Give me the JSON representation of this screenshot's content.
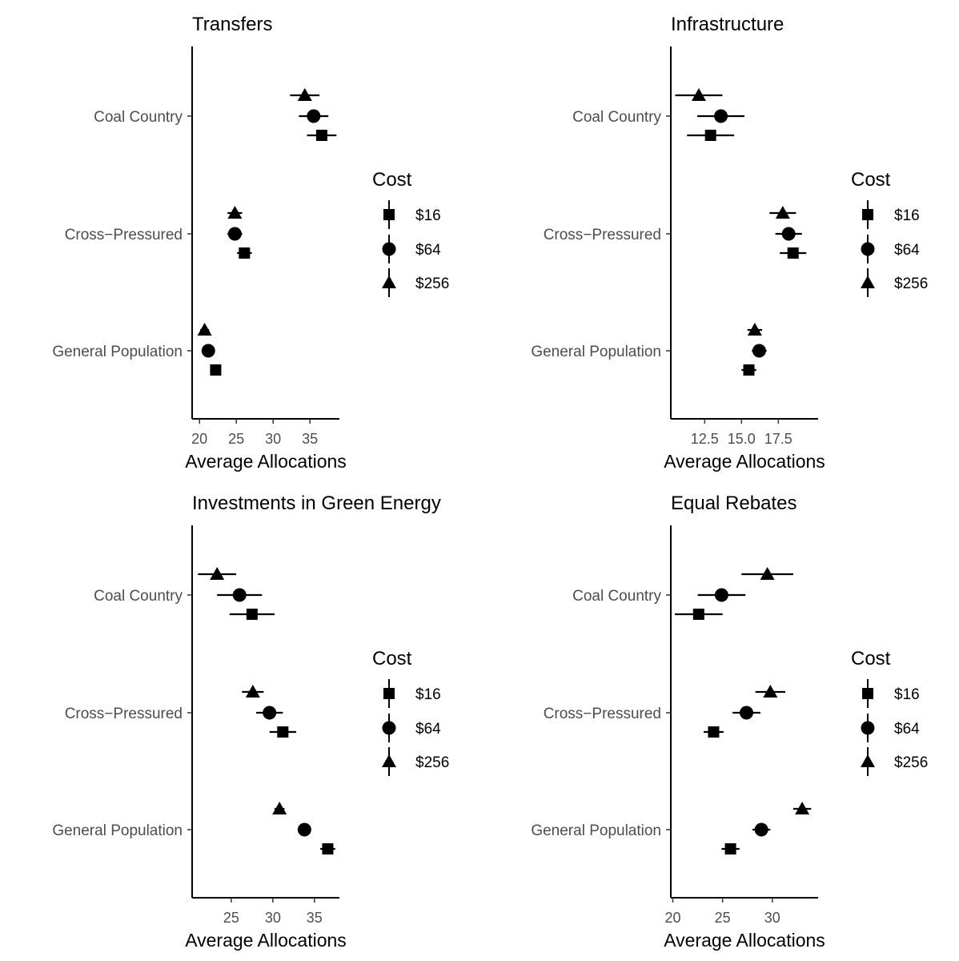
{
  "chart_data": [
    {
      "type": "scatter",
      "title": "Transfers",
      "xlabel": "Average Allocations",
      "ylabel": "",
      "xlim": [
        19,
        39
      ],
      "xticks": [
        20,
        25,
        30,
        35
      ],
      "xtick_labels": [
        "20",
        "25",
        "30",
        "35"
      ],
      "categories": [
        "Coal Country",
        "Cross−Pressured",
        "General Population"
      ],
      "legend": {
        "title": "Cost",
        "position": "right"
      },
      "grid": false,
      "series": [
        {
          "name": "$16",
          "marker": "square",
          "values": [
            36.6,
            26.1,
            22.2
          ],
          "ci_low": [
            34.6,
            25.1,
            21.6
          ],
          "ci_high": [
            38.6,
            27.1,
            22.8
          ]
        },
        {
          "name": "$64",
          "marker": "circle",
          "values": [
            35.5,
            24.8,
            21.2
          ],
          "ci_low": [
            33.5,
            23.8,
            20.6
          ],
          "ci_high": [
            37.5,
            25.8,
            21.8
          ]
        },
        {
          "name": "$256",
          "marker": "triangle",
          "values": [
            34.3,
            24.8,
            20.7
          ],
          "ci_low": [
            32.3,
            23.8,
            20.1
          ],
          "ci_high": [
            36.3,
            25.8,
            21.3
          ]
        }
      ]
    },
    {
      "type": "scatter",
      "title": "Infrastructure",
      "xlabel": "Average Allocations",
      "ylabel": "",
      "xlim": [
        10.2,
        20.2
      ],
      "xticks": [
        12.5,
        15.0,
        17.5
      ],
      "xtick_labels": [
        "12.5",
        "15.0",
        "17.5"
      ],
      "categories": [
        "Coal Country",
        "Cross−Pressured",
        "General Population"
      ],
      "legend": {
        "title": "Cost",
        "position": "right"
      },
      "grid": false,
      "series": [
        {
          "name": "$16",
          "marker": "square",
          "values": [
            12.9,
            18.5,
            15.5
          ],
          "ci_low": [
            11.3,
            17.6,
            15.0
          ],
          "ci_high": [
            14.5,
            19.4,
            16.0
          ]
        },
        {
          "name": "$64",
          "marker": "circle",
          "values": [
            13.6,
            18.2,
            16.2
          ],
          "ci_low": [
            12.0,
            17.3,
            15.7
          ],
          "ci_high": [
            15.2,
            19.1,
            16.7
          ]
        },
        {
          "name": "$256",
          "marker": "triangle",
          "values": [
            12.1,
            17.8,
            15.9
          ],
          "ci_low": [
            10.5,
            16.9,
            15.4
          ],
          "ci_high": [
            13.7,
            18.7,
            16.4
          ]
        }
      ]
    },
    {
      "type": "scatter",
      "title": "Investments in Green Energy",
      "xlabel": "Average Allocations",
      "ylabel": "",
      "xlim": [
        20.3,
        38.0
      ],
      "xticks": [
        25,
        30,
        35
      ],
      "xtick_labels": [
        "25",
        "30",
        "35"
      ],
      "categories": [
        "Coal Country",
        "Cross−Pressured",
        "General Population"
      ],
      "legend": {
        "title": "Cost",
        "position": "right"
      },
      "grid": false,
      "series": [
        {
          "name": "$16",
          "marker": "square",
          "values": [
            27.5,
            31.2,
            36.6
          ],
          "ci_low": [
            24.8,
            29.6,
            35.7
          ],
          "ci_high": [
            30.2,
            32.8,
            37.5
          ]
        },
        {
          "name": "$64",
          "marker": "circle",
          "values": [
            26.0,
            29.6,
            33.8
          ],
          "ci_low": [
            23.3,
            28.0,
            33.2
          ],
          "ci_high": [
            28.7,
            31.2,
            34.4
          ]
        },
        {
          "name": "$256",
          "marker": "triangle",
          "values": [
            23.3,
            27.6,
            30.8
          ],
          "ci_low": [
            21.0,
            26.3,
            30.2
          ],
          "ci_high": [
            25.6,
            28.9,
            31.4
          ]
        }
      ]
    },
    {
      "type": "scatter",
      "title": "Equal Rebates",
      "xlabel": "Average Allocations",
      "ylabel": "",
      "xlim": [
        19.8,
        34.6
      ],
      "xticks": [
        20,
        25,
        30
      ],
      "xtick_labels": [
        "20",
        "25",
        "30"
      ],
      "categories": [
        "Coal Country",
        "Cross−Pressured",
        "General Population"
      ],
      "legend": {
        "title": "Cost",
        "position": "right"
      },
      "grid": false,
      "series": [
        {
          "name": "$16",
          "marker": "square",
          "values": [
            22.6,
            24.1,
            25.8
          ],
          "ci_low": [
            20.2,
            23.1,
            24.9
          ],
          "ci_high": [
            25.0,
            25.1,
            26.7
          ]
        },
        {
          "name": "$64",
          "marker": "circle",
          "values": [
            24.9,
            27.4,
            28.9
          ],
          "ci_low": [
            22.5,
            26.0,
            28.0
          ],
          "ci_high": [
            27.3,
            28.8,
            29.8
          ]
        },
        {
          "name": "$256",
          "marker": "triangle",
          "values": [
            29.5,
            29.8,
            33.0
          ],
          "ci_low": [
            26.9,
            28.3,
            32.1
          ],
          "ci_high": [
            32.1,
            31.3,
            33.9
          ]
        }
      ]
    }
  ]
}
